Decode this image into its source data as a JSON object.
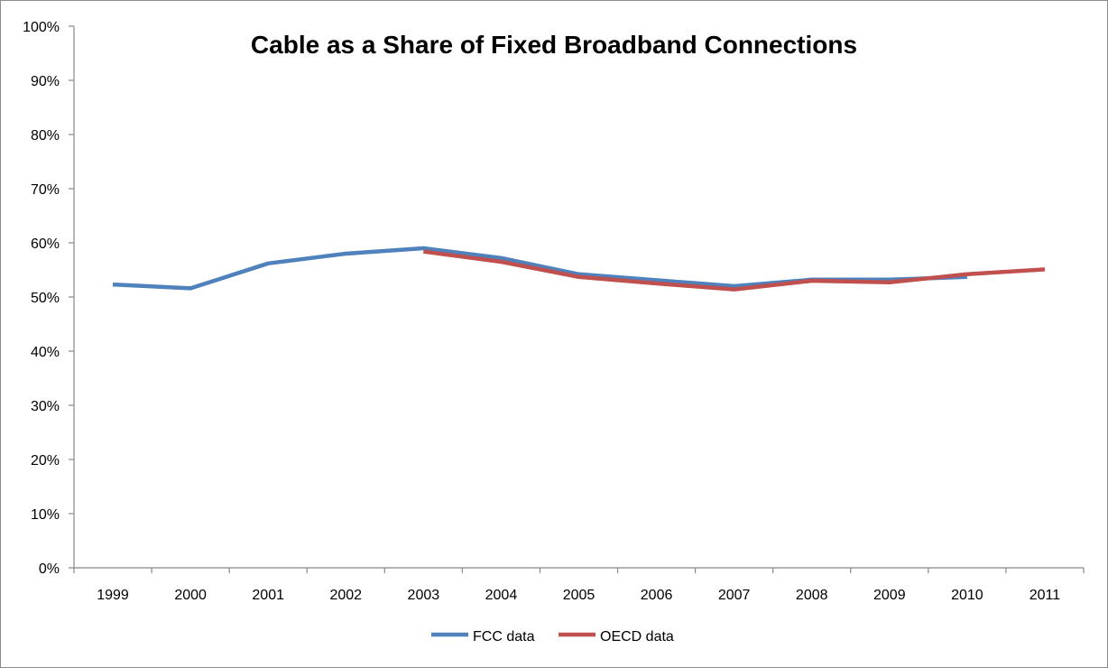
{
  "chart_data": {
    "type": "line",
    "title": "Cable as a Share of Fixed Broadband Connections",
    "xlabel": "",
    "ylabel": "",
    "categories": [
      "1999",
      "2000",
      "2001",
      "2002",
      "2003",
      "2004",
      "2005",
      "2006",
      "2007",
      "2008",
      "2009",
      "2010",
      "2011"
    ],
    "y_ticks": [
      "0%",
      "10%",
      "20%",
      "30%",
      "40%",
      "50%",
      "60%",
      "70%",
      "80%",
      "90%",
      "100%"
    ],
    "ylim": [
      0,
      100
    ],
    "grid": false,
    "legend_position": "bottom",
    "series": [
      {
        "name": "FCC data",
        "color": "#4f81bd",
        "values": [
          52.3,
          51.6,
          56.2,
          58.0,
          59.0,
          57.2,
          54.2,
          53.1,
          52.0,
          53.2,
          53.2,
          53.7,
          null
        ]
      },
      {
        "name": "OECD data",
        "color": "#c0504d",
        "values": [
          null,
          null,
          null,
          null,
          58.4,
          56.5,
          53.7,
          52.5,
          51.4,
          53.0,
          52.7,
          54.2,
          55.1
        ]
      }
    ]
  }
}
